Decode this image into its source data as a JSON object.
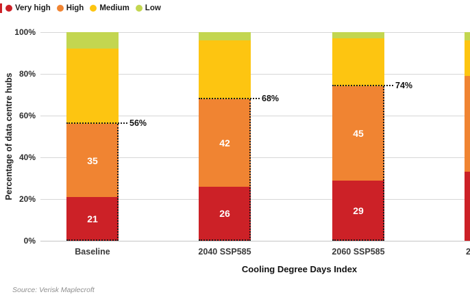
{
  "legend": {
    "items": [
      {
        "label": "Very high",
        "color": "#cc2127"
      },
      {
        "label": "High",
        "color": "#f08432"
      },
      {
        "label": "Medium",
        "color": "#fdc511"
      },
      {
        "label": "Low",
        "color": "#c3d650"
      }
    ]
  },
  "chart_data": {
    "type": "bar",
    "stacked": true,
    "categories": [
      "Baseline",
      "2040 SSP585",
      "2060 SSP585",
      "2"
    ],
    "series": [
      {
        "name": "Very high",
        "color": "#cc2127",
        "show_values": true,
        "values": [
          21,
          26,
          29,
          33
        ]
      },
      {
        "name": "High",
        "color": "#f08432",
        "show_values": true,
        "values": [
          35,
          42,
          45,
          46
        ]
      },
      {
        "name": "Medium",
        "color": "#fdc511",
        "show_values": false,
        "values": [
          36,
          28,
          23,
          17
        ]
      },
      {
        "name": "Low",
        "color": "#c3d650",
        "show_values": false,
        "values": [
          8,
          4,
          3,
          4
        ]
      }
    ],
    "annotations": [
      {
        "bar": 0,
        "value": 56,
        "label": "56%"
      },
      {
        "bar": 1,
        "value": 68,
        "label": "68%"
      },
      {
        "bar": 2,
        "value": 74,
        "label": "74%"
      }
    ],
    "yticks": [
      "0%",
      "20%",
      "40%",
      "60%",
      "80%",
      "100%"
    ],
    "ylim": [
      0,
      100
    ],
    "ylabel": "Percentage of data centre hubs",
    "xlabel": "Cooling Degree Days Index",
    "grid": true,
    "legend_position": "top-left"
  },
  "source": "Source: Verisk Maplecroft"
}
